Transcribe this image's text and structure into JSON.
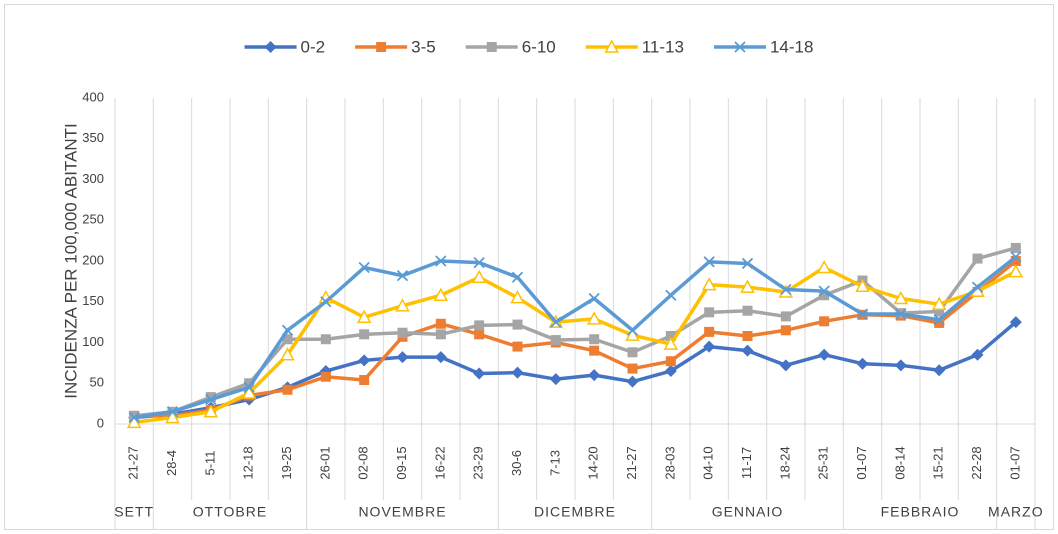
{
  "chart_data": {
    "type": "line",
    "y_label": "INCIDENZA PER 100,000 ABITANTI",
    "categories": [
      "21-27",
      "28-4",
      "5-11",
      "12-18",
      "19-25",
      "26-01",
      "02-08",
      "09-15",
      "16-22",
      "23-29",
      "30-6",
      "7-13",
      "14-20",
      "21-27",
      "28-03",
      "04-10",
      "11-17",
      "18-24",
      "25-31",
      "01-07",
      "08-14",
      "15-21",
      "22-28",
      "01-07"
    ],
    "month_groups": [
      {
        "label": "SETT",
        "categories": 1
      },
      {
        "label": "OTTOBRE",
        "categories": 4
      },
      {
        "label": "NOVEMBRE",
        "categories": 5
      },
      {
        "label": "DICEMBRE",
        "categories": 4
      },
      {
        "label": "GENNAIO",
        "categories": 5
      },
      {
        "label": "FEBBRAIO",
        "categories": 4
      },
      {
        "label": "MARZO",
        "categories": 1
      }
    ],
    "series": [
      {
        "name": "0-2",
        "color": "#4472c4",
        "marker": "diamond",
        "values": [
          8,
          12,
          20,
          30,
          45,
          65,
          78,
          82,
          82,
          62,
          63,
          55,
          60,
          52,
          65,
          95,
          90,
          72,
          85,
          74,
          72,
          66,
          85,
          125
        ]
      },
      {
        "name": "3-5",
        "color": "#ed7d31",
        "marker": "square",
        "values": [
          10,
          10,
          17,
          35,
          42,
          58,
          54,
          107,
          123,
          110,
          95,
          100,
          90,
          68,
          77,
          113,
          108,
          115,
          126,
          134,
          133,
          124,
          162,
          200
        ]
      },
      {
        "name": "6-10",
        "color": "#a5a5a5",
        "marker": "square",
        "values": [
          10,
          15,
          33,
          50,
          104,
          104,
          110,
          112,
          110,
          121,
          122,
          103,
          104,
          88,
          108,
          137,
          139,
          132,
          158,
          176,
          136,
          138,
          203,
          216
        ]
      },
      {
        "name": "11-13",
        "color": "#ffc000",
        "marker": "triangle",
        "values": [
          2,
          8,
          15,
          38,
          85,
          155,
          131,
          145,
          158,
          180,
          155,
          125,
          129,
          109,
          98,
          171,
          168,
          162,
          192,
          169,
          154,
          147,
          163,
          187
        ]
      },
      {
        "name": "14-18",
        "color": "#5b9bd5",
        "marker": "x",
        "values": [
          8,
          15,
          30,
          45,
          115,
          150,
          192,
          182,
          200,
          198,
          180,
          125,
          154,
          115,
          158,
          199,
          197,
          165,
          163,
          135,
          135,
          128,
          168,
          205
        ]
      }
    ],
    "ylim": [
      0,
      400
    ],
    "yticks": [
      0,
      50,
      100,
      150,
      200,
      250,
      300,
      350,
      400
    ],
    "grid": "vertical",
    "legend": "top"
  }
}
